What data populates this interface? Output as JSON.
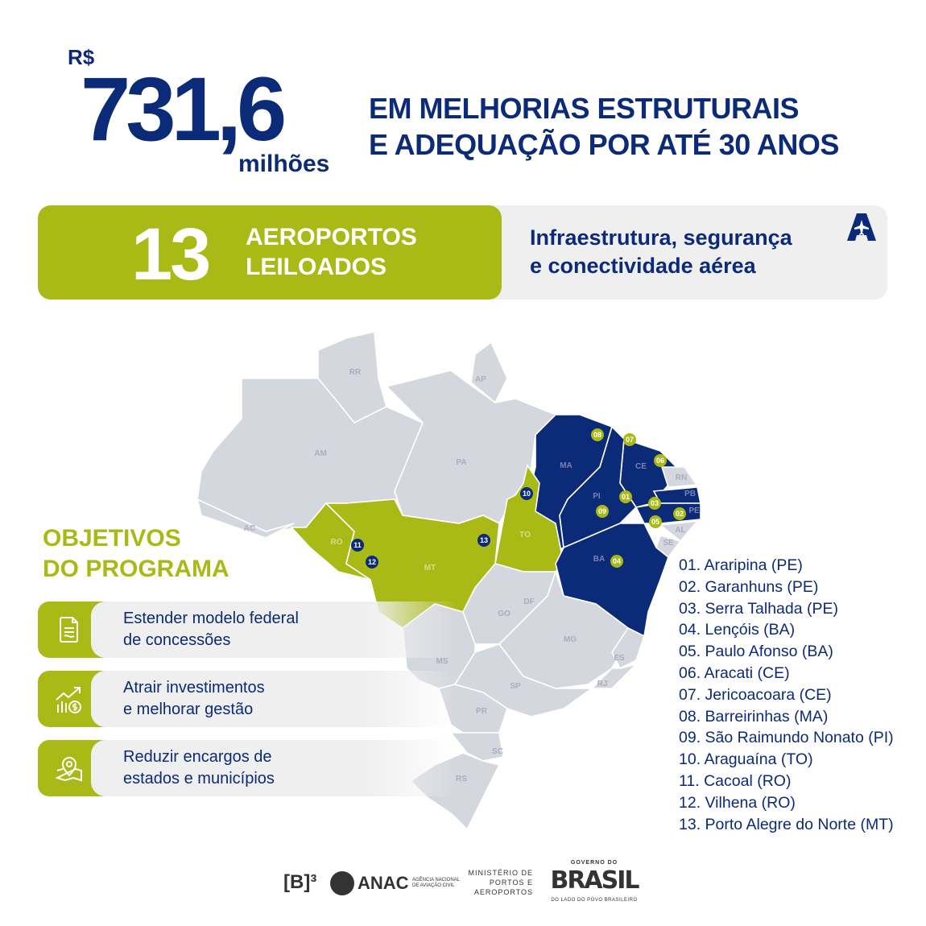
{
  "colors": {
    "navy": "#0b2a78",
    "green": "#a9b915",
    "gray_state": "#d5d7de",
    "panel": "#efefef"
  },
  "header": {
    "currency": "R$",
    "amount": "731,6",
    "unit": "milhões",
    "headline_line1": "EM MELHORIAS ESTRUTURAIS",
    "headline_line2": "E ADEQUAÇÃO POR ATÉ 30 ANOS"
  },
  "banner": {
    "count": "13",
    "label_line1": "AEROPORTOS",
    "label_line2": "LEILOADOS",
    "text_line1": "Infraestrutura, segurança",
    "text_line2": "e conectividade aérea",
    "logo_icon": "airplane-A-logo"
  },
  "objectives": {
    "title_line1": "OBJETIVOS",
    "title_line2": "DO PROGRAMA",
    "items": [
      {
        "icon": "document-icon",
        "line1": "Estender modelo federal",
        "line2": "de concessões"
      },
      {
        "icon": "chart-growth-money-icon",
        "line1": "Atrair investimentos",
        "line2": "e melhorar gestão"
      },
      {
        "icon": "map-pin-icon",
        "line1": "Reduzir encargos de",
        "line2": "estados e municípios"
      }
    ]
  },
  "map": {
    "states": [
      "RR",
      "AP",
      "AM",
      "PA",
      "AC",
      "MA",
      "CE",
      "RN",
      "PB",
      "PE",
      "PI",
      "AL",
      "SE",
      "TO",
      "RO",
      "MT",
      "BA",
      "DF",
      "GO",
      "MG",
      "ES",
      "MS",
      "SP",
      "RJ",
      "PR",
      "SC",
      "RS"
    ],
    "highlight_navy": [
      "MA",
      "PI",
      "CE",
      "PB",
      "PE",
      "BA"
    ],
    "highlight_green": [
      "TO",
      "MT",
      "RO"
    ],
    "markers": [
      "01",
      "02",
      "03",
      "04",
      "05",
      "06",
      "07",
      "08",
      "09",
      "10",
      "11",
      "12",
      "13"
    ]
  },
  "airports": [
    "01. Araripina (PE)",
    "02. Garanhuns (PE)",
    "03. Serra Talhada (PE)",
    "04. Lençóis (BA)",
    "05. Paulo Afonso (BA)",
    "06. Aracati (CE)",
    "07. Jericoacoara (CE)",
    "08. Barreirinhas (MA)",
    "09. São Raimundo Nonato (PI)",
    "10. Araguaína (TO)",
    "11. Cacoal (RO)",
    "12. Vilhena (RO)",
    "13. Porto Alegre do Norte (MT)"
  ],
  "footer": {
    "logos": [
      "[B]³",
      "ANAC",
      "AGÊNCIA NACIONAL DE AVIAÇÃO CIVIL",
      "MINISTÉRIO DE PORTOS E AEROPORTOS",
      "GOVERNO DO",
      "BRASIL",
      "DO LADO DO POVO BRASILEIRO"
    ]
  }
}
